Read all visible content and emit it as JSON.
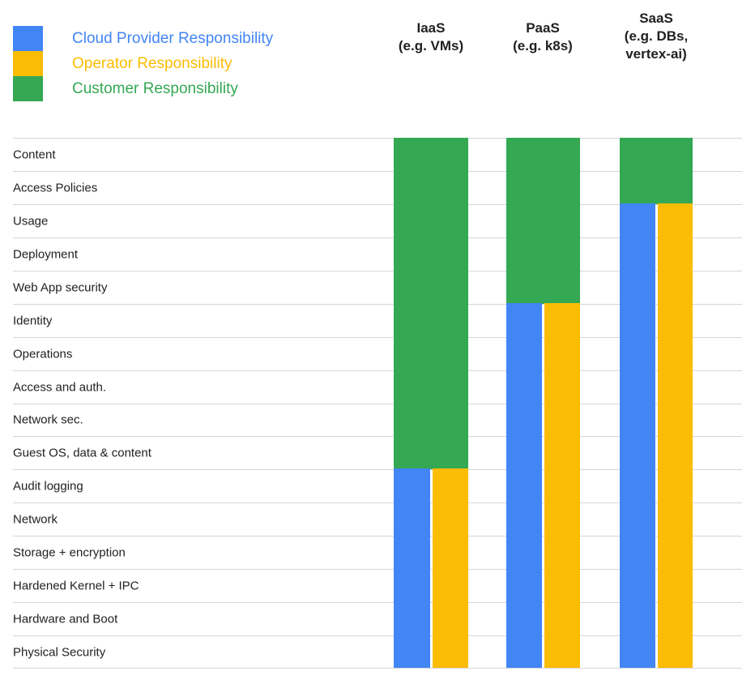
{
  "chart_data": {
    "type": "heatmap",
    "legend": [
      {
        "label": "Cloud Provider Responsibility",
        "color": "#4285F4"
      },
      {
        "label": "Operator Responsibility",
        "color": "#FBBC04"
      },
      {
        "label": "Customer Responsibility",
        "color": "#34A853"
      }
    ],
    "rows": [
      "Content",
      "Access Policies",
      "Usage",
      "Deployment",
      "Web App security",
      "Identity",
      "Operations",
      "Access and auth.",
      "Network sec.",
      "Guest OS, data & content",
      "Audit logging",
      "Network",
      "Storage + encryption",
      "Hardened Kernel + IPC",
      "Hardware and Boot",
      "Physical Security"
    ],
    "columns": [
      {
        "id": "iaas",
        "header": "IaaS\n(e.g. VMs)",
        "customer_rows": 10,
        "provider_operator_rows": 6
      },
      {
        "id": "paas",
        "header": "PaaS\n(e.g. k8s)",
        "customer_rows": 5,
        "provider_operator_rows": 11
      },
      {
        "id": "saas",
        "header": "SaaS\n(e.g. DBs,\nvertex-ai)",
        "customer_rows": 2,
        "provider_operator_rows": 14
      }
    ],
    "colors": {
      "provider": "#4285F4",
      "operator": "#FBBC04",
      "customer": "#34A853",
      "gridline": "#d6d6d6",
      "label_text": "#212121"
    },
    "cell_assignments": {
      "iaas": {
        "customer": [
          "Content",
          "Access Policies",
          "Usage",
          "Deployment",
          "Web App security",
          "Identity",
          "Operations",
          "Access and auth.",
          "Network sec.",
          "Guest OS, data & content"
        ],
        "provider_and_operator": [
          "Audit logging",
          "Network",
          "Storage + encryption",
          "Hardened Kernel + IPC",
          "Hardware and Boot",
          "Physical Security"
        ]
      },
      "paas": {
        "customer": [
          "Content",
          "Access Policies",
          "Usage",
          "Deployment",
          "Web App security"
        ],
        "provider_and_operator": [
          "Identity",
          "Operations",
          "Access and auth.",
          "Network sec.",
          "Guest OS, data & content",
          "Audit logging",
          "Network",
          "Storage + encryption",
          "Hardened Kernel + IPC",
          "Hardware and Boot",
          "Physical Security"
        ]
      },
      "saas": {
        "customer": [
          "Content",
          "Access Policies"
        ],
        "provider_and_operator": [
          "Usage",
          "Deployment",
          "Web App security",
          "Identity",
          "Operations",
          "Access and auth.",
          "Network sec.",
          "Guest OS, data & content",
          "Audit logging",
          "Network",
          "Storage + encryption",
          "Hardened Kernel + IPC",
          "Hardware and Boot",
          "Physical Security"
        ]
      }
    }
  }
}
